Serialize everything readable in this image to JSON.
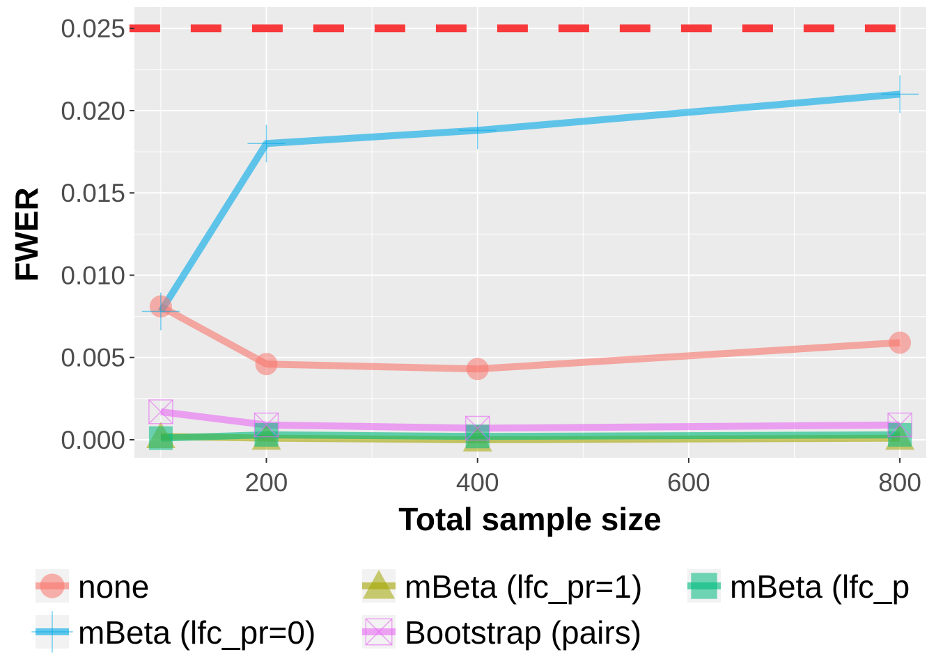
{
  "chart_data": {
    "type": "line",
    "title": "",
    "xlabel": "Total sample size",
    "ylabel": "FWER",
    "x": [
      100,
      200,
      400,
      800
    ],
    "xlim": [
      75,
      825
    ],
    "ylim": [
      -0.0011,
      0.0263
    ],
    "xticks": [
      200,
      400,
      600,
      800
    ],
    "xtick_labels": [
      "200",
      "400",
      "600",
      "800"
    ],
    "yticks": [
      0.0,
      0.005,
      0.01,
      0.015,
      0.02,
      0.025
    ],
    "ytick_labels": [
      "0.000",
      "0.005",
      "0.010",
      "0.015",
      "0.020",
      "0.025"
    ],
    "grid": true,
    "legend_position": "bottom",
    "reference_line": {
      "y": 0.025,
      "color": "#f8393b",
      "style": "dashed"
    },
    "series": [
      {
        "name": "none",
        "color": "#F8766D",
        "marker": "circle",
        "values": [
          0.0081,
          0.0046,
          0.0043,
          0.0059
        ]
      },
      {
        "name": "mBeta (lfc_pr=0)",
        "color": "#00A9E6",
        "marker": "plus",
        "values": [
          0.0078,
          0.018,
          0.0188,
          0.021
        ]
      },
      {
        "name": "mBeta (lfc_pr=1)",
        "color": "#A3A500",
        "marker": "triangle",
        "values": [
          0.0002,
          0.0001,
          0.0,
          0.0001
        ]
      },
      {
        "name": "Bootstrap (pairs)",
        "color": "#E76BF3",
        "marker": "boxcross",
        "values": [
          0.0017,
          0.0009,
          0.0007,
          0.0009
        ]
      },
      {
        "name": "mBeta (lfc_p",
        "color": "#00BA7E",
        "marker": "square",
        "values": [
          0.0001,
          0.0003,
          0.0002,
          0.0003
        ]
      }
    ]
  }
}
